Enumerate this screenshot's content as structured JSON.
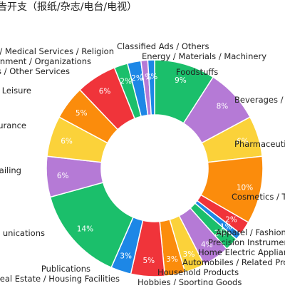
{
  "chart_data": {
    "type": "pie",
    "donut": true,
    "title": "告开支（报纸/杂志/电台/电视）",
    "categories": [
      "Foodstuffs",
      "Beverages / Cigare",
      "Pharmaceutic",
      "Cosmetics / To",
      "Apparel / Fashion,",
      "Precision Instrumen",
      "Home Electric Applianc",
      "Automobiles / Related Pro",
      "Household Products",
      "Hobbies / Sporting Goods",
      "Real Estate / Housing Facilities",
      "Publications",
      "unications",
      "ailing",
      "urance",
      "ion / Leisure",
      "es / Other Services",
      "ernment / Organizations",
      "n / Medical Services / Religion",
      "Classified Ads / Others",
      "Energy / Materials / Machinery"
    ],
    "values": [
      9,
      8,
      6,
      10,
      2,
      1,
      2,
      4,
      3,
      3,
      5,
      3,
      14,
      6,
      6,
      5,
      6,
      2,
      2,
      1,
      1
    ],
    "value_labels": [
      "9%",
      "8%",
      "6%",
      "10%",
      "2%",
      "1%",
      "2%",
      "4%",
      "3%",
      "3%",
      "5%",
      "3%",
      "14%",
      "6%",
      "6%",
      "5%",
      "6%",
      "2%",
      "2%",
      "1%",
      "1%"
    ],
    "colors": [
      "#1bbf6b",
      "#b57ad6",
      "#fbd23a",
      "#fb8c0c",
      "#f0343a",
      "#1d87e6",
      "#1bbf6b",
      "#b57ad6",
      "#fbd23a",
      "#fb8c0c",
      "#f0343a",
      "#1d87e6",
      "#1bbf6b",
      "#b57ad6",
      "#fbd23a",
      "#fb8c0c",
      "#f0343a",
      "#1bbf6b",
      "#1d87e6",
      "#b57ad6",
      "#1d87e6"
    ],
    "legend": "none"
  }
}
